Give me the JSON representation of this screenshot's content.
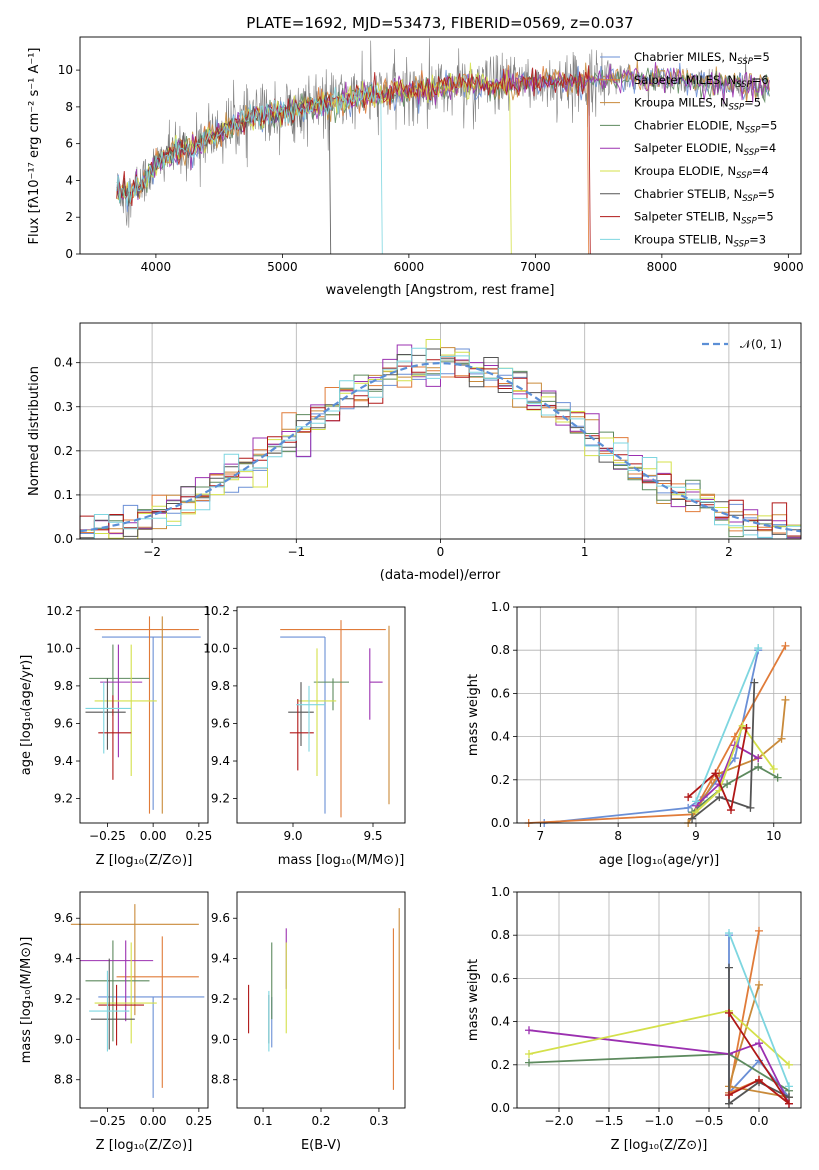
{
  "title": "PLATE=1692, MJD=53473, FIBERID=0569, z=0.037",
  "series": [
    {
      "name": "Chabrier MILES, N$_{SSP}$=5",
      "label_main": "Chabrier MILES, N",
      "sub": "SSP",
      "label_tail": "=5",
      "color": "#6a8fd6"
    },
    {
      "name": "Salpeter MILES",
      "label_main": "Salpeter MILES, N",
      "sub": "SSP",
      "label_tail": "=6",
      "color": "#e07b39"
    },
    {
      "name": "Kroupa MILES",
      "label_main": "Kroupa MILES, N",
      "sub": "SSP",
      "label_tail": "=5",
      "color": "#c98a3a"
    },
    {
      "name": "Chabrier ELODIE",
      "label_main": "Chabrier ELODIE, N",
      "sub": "SSP",
      "label_tail": "=5",
      "color": "#5d8a5e"
    },
    {
      "name": "Salpeter ELODIE",
      "label_main": "Salpeter ELODIE, N",
      "sub": "SSP",
      "label_tail": "=4",
      "color": "#9b30b0"
    },
    {
      "name": "Kroupa ELODIE",
      "label_main": "Kroupa ELODIE, N",
      "sub": "SSP",
      "label_tail": "=4",
      "color": "#d4e04a"
    },
    {
      "name": "Chabrier STELIB",
      "label_main": "Chabrier STELIB, N",
      "sub": "SSP",
      "label_tail": "=5",
      "color": "#555555"
    },
    {
      "name": "Salpeter STELIB",
      "label_main": "Salpeter STELIB, N",
      "sub": "SSP",
      "label_tail": "=5",
      "color": "#b01818"
    },
    {
      "name": "Kroupa STELIB",
      "label_main": "Kroupa STELIB, N",
      "sub": "SSP",
      "label_tail": "=3",
      "color": "#7ed6e0"
    }
  ],
  "chart_data": [
    {
      "type": "line",
      "id": "spectrum",
      "xlabel": "wavelength [Angstrom, rest frame]",
      "ylabel": "Flux [fλ10⁻¹⁷ erg cm⁻² s⁻¹ A⁻¹]",
      "xlim": [
        3400,
        9100
      ],
      "ylim": [
        0,
        11.8
      ],
      "xticks": [
        4000,
        5000,
        6000,
        7000,
        8000,
        9000
      ],
      "yticks": [
        0,
        2,
        4,
        6,
        8,
        10
      ],
      "data_color": "#808080",
      "model_knots": [
        [
          3700,
          3.4
        ],
        [
          3800,
          3.3
        ],
        [
          3900,
          4.0
        ],
        [
          4000,
          4.8
        ],
        [
          4100,
          5.4
        ],
        [
          4300,
          5.8
        ],
        [
          4500,
          6.6
        ],
        [
          4700,
          7.3
        ],
        [
          5000,
          7.8
        ],
        [
          5200,
          8.0
        ],
        [
          5500,
          8.4
        ],
        [
          5800,
          8.7
        ],
        [
          6000,
          8.9
        ],
        [
          6300,
          9.1
        ],
        [
          6600,
          9.2
        ],
        [
          7000,
          9.3
        ],
        [
          7400,
          9.4
        ],
        [
          7600,
          9.6
        ],
        [
          8000,
          9.5
        ],
        [
          8400,
          9.3
        ],
        [
          8850,
          9.0
        ]
      ]
    },
    {
      "type": "step",
      "id": "residuals",
      "xlabel": "(data-model)/error",
      "ylabel": "Normed distribution",
      "xlim": [
        -2.5,
        2.5
      ],
      "ylim": [
        0,
        0.49
      ],
      "xticks": [
        -2,
        -1,
        0,
        1,
        2
      ],
      "yticks": [
        0.0,
        0.1,
        0.2,
        0.3,
        0.4
      ],
      "legend": "𝒩(0, 1)",
      "legend_loc": "top-right",
      "bin_width": 0.1,
      "grid": true
    },
    {
      "type": "errorbar",
      "id": "z-age",
      "xlabel": "Z [log₁₀(Z/Z⊙)]",
      "ylabel": "age  [log₁₀(age/yr)]",
      "xlim": [
        -0.4,
        0.3
      ],
      "ylim": [
        9.07,
        10.22
      ],
      "xticks": [
        -0.25,
        0.0,
        0.25
      ],
      "xticklabels": [
        "−0.25",
        "0.00",
        "0.25"
      ],
      "yticks": [
        9.2,
        9.4,
        9.6,
        9.8,
        10.0,
        10.2
      ],
      "points": [
        {
          "x": 0.0,
          "xerr": [
            0.28,
            0.26
          ],
          "y": 10.06,
          "yerr": [
            0.92,
            0.0
          ]
        },
        {
          "x": -0.02,
          "xerr": [
            0.3,
            0.27
          ],
          "y": 10.1,
          "yerr": [
            0.98,
            0.07
          ]
        },
        {
          "x": 0.05,
          "xerr": [
            0.0,
            0.0
          ],
          "y": 9.62,
          "yerr": [
            0.5,
            0.55
          ]
        },
        {
          "x": -0.22,
          "xerr": [
            0.13,
            0.2
          ],
          "y": 9.84,
          "yerr": [
            0.2,
            0.18
          ]
        },
        {
          "x": -0.19,
          "xerr": [
            0.1,
            0.13
          ],
          "y": 9.82,
          "yerr": [
            0.4,
            0.2
          ]
        },
        {
          "x": -0.12,
          "xerr": [
            0.2,
            0.14
          ],
          "y": 9.72,
          "yerr": [
            0.4,
            0.3
          ]
        },
        {
          "x": -0.25,
          "xerr": [
            0.12,
            0.1
          ],
          "y": 9.66,
          "yerr": [
            0.2,
            0.18
          ]
        },
        {
          "x": -0.22,
          "xerr": [
            0.08,
            0.1
          ],
          "y": 9.55,
          "yerr": [
            0.25,
            0.2
          ]
        },
        {
          "x": -0.27,
          "xerr": [
            0.1,
            0.15
          ],
          "y": 9.68,
          "yerr": [
            0.24,
            0.14
          ]
        }
      ]
    },
    {
      "type": "errorbar",
      "id": "mass-age",
      "xlabel": "mass [log₁₀(M/M⊙)]",
      "ylabel": "",
      "xlim": [
        8.65,
        9.7
      ],
      "ylim": [
        9.07,
        10.22
      ],
      "xticks": [
        9.0,
        9.5
      ],
      "xticklabels": [
        "9.0",
        "9.5"
      ],
      "yticks": [
        9.2,
        9.4,
        9.6,
        9.8,
        10.0,
        10.2
      ]
    },
    {
      "type": "line",
      "id": "age-weight",
      "xlabel": "age  [log₁₀(age/yr)]",
      "ylabel": "mass weight",
      "xlim": [
        6.7,
        10.35
      ],
      "ylim": [
        0,
        1.0
      ],
      "xticks": [
        7,
        8,
        9,
        10
      ],
      "yticks": [
        0.0,
        0.2,
        0.4,
        0.6,
        0.8,
        1.0
      ],
      "grid": true
    },
    {
      "type": "errorbar",
      "id": "z-mass",
      "xlabel": "Z [log₁₀(Z/Z⊙)]",
      "ylabel": "mass [log₁₀(M/M⊙)]",
      "xlim": [
        -0.4,
        0.3
      ],
      "ylim": [
        8.66,
        9.73
      ],
      "xticks": [
        -0.25,
        0.0,
        0.25
      ],
      "xticklabels": [
        "−0.25",
        "0.00",
        "0.25"
      ],
      "yticks": [
        8.8,
        9.0,
        9.2,
        9.4,
        9.6
      ]
    },
    {
      "type": "errorbar",
      "id": "ebv-mass",
      "xlabel": "E(B-V)",
      "ylabel": "",
      "xlim": [
        0.055,
        0.345
      ],
      "ylim": [
        8.66,
        9.73
      ],
      "xticks": [
        0.1,
        0.2,
        0.3
      ],
      "xticklabels": [
        "0.1",
        "0.2",
        "0.3"
      ],
      "yticks": [
        8.8,
        9.0,
        9.2,
        9.4,
        9.6
      ]
    },
    {
      "type": "line",
      "id": "z-weight",
      "xlabel": "Z [log₁₀(Z/Z⊙)]",
      "ylabel": "mass weight",
      "xlim": [
        -2.42,
        0.42
      ],
      "ylim": [
        0,
        1.0
      ],
      "xticks": [
        -2.0,
        -1.5,
        -1.0,
        -0.5,
        0.0
      ],
      "xticklabels": [
        "−2.0",
        "−1.5",
        "−1.0",
        "−0.5",
        "0.0"
      ],
      "yticks": [
        0.0,
        0.2,
        0.4,
        0.6,
        0.8,
        1.0
      ],
      "grid": true
    }
  ]
}
